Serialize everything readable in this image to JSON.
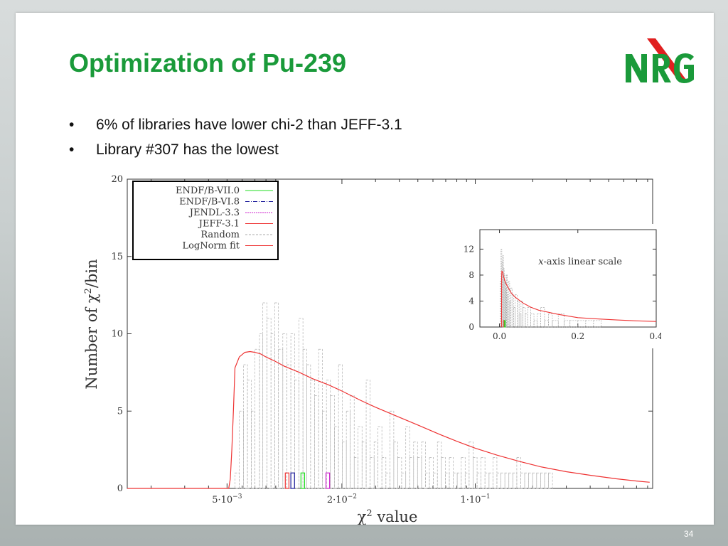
{
  "slide": {
    "title": "Optimization of Pu-239",
    "bullets": [
      "6% of libraries have lower chi-2 than JEFF-3.1",
      "Library #307 has the lowest"
    ],
    "bullet_char": "•",
    "logo_text": "NRG",
    "slide_number": "34",
    "colors": {
      "title": "#1a9a3a",
      "logo_green": "#1a9a3a",
      "logo_red": "#e02020"
    }
  },
  "chart_data": [
    {
      "type": "histogram",
      "ylabel_prefix": "Number of ",
      "ylabel_chi": "χ",
      "ylabel_sup": "2",
      "ylabel_suffix": "/bin",
      "xlabel_chi": "χ",
      "xlabel_sup": "2",
      "xlabel_suffix": " value",
      "x_scale": "log",
      "xlim": [
        0.0015,
        0.85
      ],
      "ylim": [
        0,
        20
      ],
      "y_ticks": [
        0,
        5,
        10,
        15,
        20
      ],
      "x_ticks": [
        {
          "value": 0.005,
          "mant": "5·10",
          "exp": "−3"
        },
        {
          "value": 0.02,
          "mant": "2·10",
          "exp": "−2"
        },
        {
          "value": 0.1,
          "mant": "1·10",
          "exp": "−1"
        }
      ],
      "legend_position": "top-left",
      "legend": [
        {
          "label": "ENDF/B-VII.0",
          "color": "#22dd22",
          "dash": ""
        },
        {
          "label": "ENDF/B-VI.8",
          "color": "#1a1a9a",
          "dash": "6,2,1,2"
        },
        {
          "label": "JENDL-3.3",
          "color": "#cc22cc",
          "dash": "2,1"
        },
        {
          "label": "JEFF-3.1",
          "color": "#ee3333",
          "dash": ""
        },
        {
          "label": "Random",
          "color": "#aaaaaa",
          "dash": "3,2"
        },
        {
          "label": "LogNorm fit",
          "color": "#ee3333",
          "dash": ""
        }
      ],
      "random_bins": {
        "x": [
          0.0055,
          0.0058,
          0.0061,
          0.0064,
          0.0067,
          0.007,
          0.0074,
          0.0077,
          0.0081,
          0.0085,
          0.0089,
          0.0093,
          0.0098,
          0.0103,
          0.0108,
          0.0113,
          0.0119,
          0.0125,
          0.0131,
          0.0137,
          0.0144,
          0.0151,
          0.0158,
          0.0166,
          0.0174,
          0.0183,
          0.0192,
          0.0201,
          0.0211,
          0.0221,
          0.0232,
          0.0243,
          0.0255,
          0.0268,
          0.0281,
          0.0295,
          0.0309,
          0.0324,
          0.034,
          0.0357,
          0.0374,
          0.0392,
          0.0411,
          0.0432,
          0.0453,
          0.0475,
          0.0498,
          0.0523,
          0.0548,
          0.0575,
          0.0603,
          0.0633,
          0.0664,
          0.0697,
          0.0731,
          0.0767,
          0.0804,
          0.0844,
          0.0885,
          0.0928,
          0.0974,
          0.1022,
          0.1072,
          0.1124,
          0.118,
          0.1237,
          0.1298,
          0.1362,
          0.1429,
          0.1499,
          0.1572,
          0.165,
          0.173,
          0.1815,
          0.1904,
          0.1998,
          0.2096,
          0.2199,
          0.2307,
          0.242
        ],
        "values": [
          1,
          5,
          8,
          7,
          5,
          9,
          10,
          12,
          11,
          10,
          12,
          9,
          10,
          8,
          10,
          7,
          11,
          9,
          8,
          7,
          6,
          9,
          5,
          7,
          6,
          4,
          8,
          3,
          5,
          6,
          2,
          4,
          3,
          7,
          2,
          3,
          4,
          2,
          1,
          5,
          3,
          2,
          1,
          4,
          2,
          3,
          2,
          3,
          1,
          2,
          1,
          3,
          2,
          1,
          2,
          1,
          1,
          2,
          1,
          3,
          2,
          1,
          2,
          1,
          1,
          2,
          1,
          1,
          1,
          1,
          1,
          2,
          1,
          1,
          1,
          1,
          1,
          1,
          1,
          1
        ]
      },
      "library_markers": [
        {
          "name": "JEFF-3.1",
          "x": 0.0101,
          "value": 1,
          "color": "#ee3333"
        },
        {
          "name": "ENDF/B-VI.8",
          "x": 0.0108,
          "value": 1,
          "color": "#1a1a9a"
        },
        {
          "name": "ENDF/B-VII.0",
          "x": 0.0122,
          "value": 1,
          "color": "#22dd22"
        },
        {
          "name": "JENDL-3.3",
          "x": 0.0165,
          "value": 1,
          "color": "#cc22cc"
        }
      ],
      "fit": {
        "x": [
          0.0051,
          0.0052,
          0.0053,
          0.0054,
          0.0055,
          0.0058,
          0.0062,
          0.0066,
          0.007,
          0.0075,
          0.008,
          0.009,
          0.01,
          0.012,
          0.014,
          0.017,
          0.02,
          0.025,
          0.03,
          0.04,
          0.05,
          0.065,
          0.08,
          0.1,
          0.13,
          0.17,
          0.22,
          0.3,
          0.4,
          0.55,
          0.7,
          0.82
        ],
        "values": [
          0,
          0.6,
          2.5,
          5,
          7.8,
          8.5,
          8.8,
          8.85,
          8.8,
          8.7,
          8.5,
          8.2,
          7.9,
          7.5,
          7.1,
          6.7,
          6.3,
          5.7,
          5.25,
          4.6,
          4.1,
          3.5,
          3.05,
          2.6,
          2.15,
          1.75,
          1.4,
          1.08,
          0.85,
          0.62,
          0.48,
          0.4
        ]
      }
    },
    {
      "type": "histogram",
      "annotation_var": "x",
      "annotation_text": "-axis linear scale",
      "x_scale": "linear",
      "xlim": [
        -0.05,
        0.4
      ],
      "ylim": [
        0,
        15
      ],
      "x_ticks": [
        0.0,
        0.2,
        0.4
      ],
      "x_tick_labels": [
        "0.0",
        "0.2",
        "0.4"
      ],
      "y_ticks": [
        0,
        4,
        8,
        12
      ],
      "random_bins": {
        "x": [
          0.002,
          0.004,
          0.006,
          0.008,
          0.01,
          0.012,
          0.014,
          0.016,
          0.018,
          0.02,
          0.023,
          0.026,
          0.029,
          0.032,
          0.036,
          0.04,
          0.045,
          0.05,
          0.055,
          0.06,
          0.066,
          0.072,
          0.08,
          0.088,
          0.096,
          0.105,
          0.115,
          0.125,
          0.135,
          0.15,
          0.165,
          0.18,
          0.2,
          0.22,
          0.24
        ],
        "values": [
          7,
          12,
          10,
          11,
          9,
          8,
          7,
          6,
          8,
          5,
          7,
          4,
          6,
          5,
          3,
          5,
          4,
          2,
          4,
          3,
          2,
          3,
          2,
          1,
          2,
          3,
          1,
          2,
          1,
          2,
          1,
          1,
          1,
          1,
          1
        ]
      },
      "library_markers": [
        {
          "name": "JEFF-3.1",
          "x": 0.0101,
          "value": 1,
          "color": "#ee3333"
        },
        {
          "name": "ENDF/B-VII.0",
          "x": 0.0122,
          "value": 1,
          "color": "#22dd22"
        }
      ],
      "fit": {
        "x": [
          0.0051,
          0.0055,
          0.006,
          0.008,
          0.01,
          0.015,
          0.02,
          0.03,
          0.04,
          0.06,
          0.08,
          0.1,
          0.15,
          0.2,
          0.25,
          0.3,
          0.35,
          0.4
        ],
        "values": [
          0,
          7.8,
          8.6,
          8.5,
          7.9,
          6.9,
          6.3,
          5.25,
          4.6,
          3.7,
          3.05,
          2.6,
          1.95,
          1.45,
          1.25,
          1.08,
          0.95,
          0.85
        ]
      }
    }
  ]
}
